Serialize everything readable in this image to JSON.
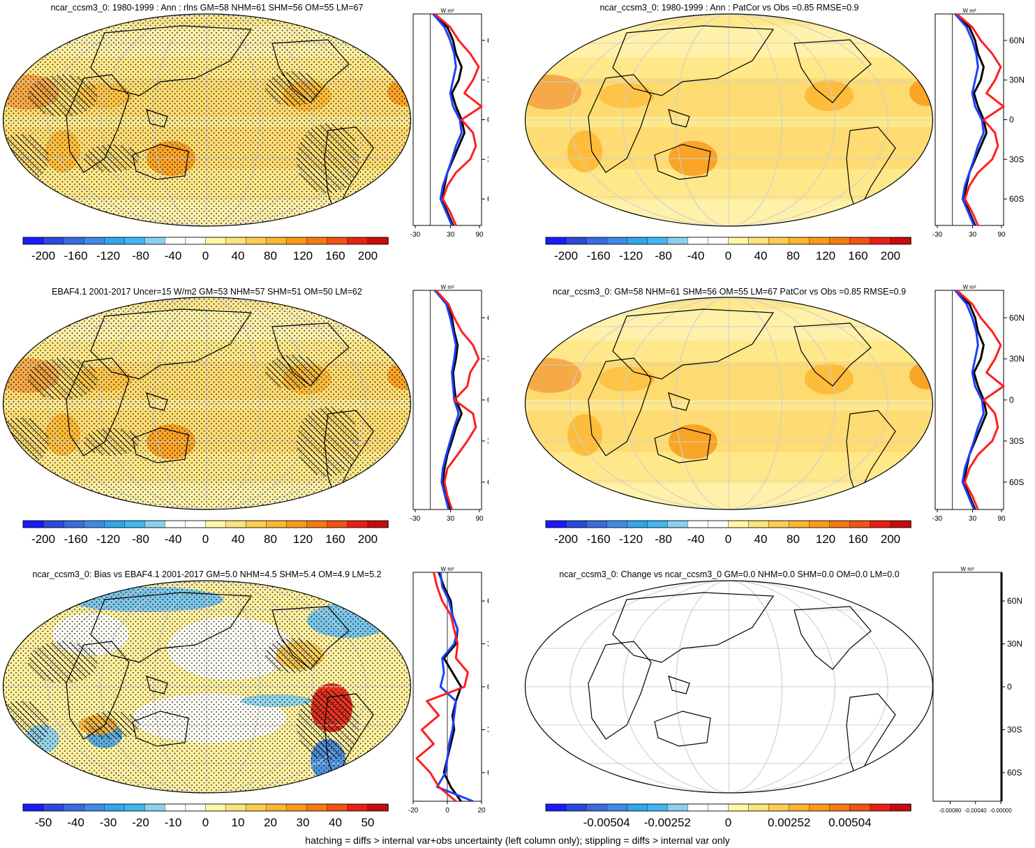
{
  "footer_note": "hatching = diffs > internal var+obs uncertainty (left column only); stippling = diffs > internal var only",
  "palette": [
    "#1a1aff",
    "#2a4adc",
    "#3a6be3",
    "#3f8ae8",
    "#2fa6ee",
    "#41b7f0",
    "#8bd1ef",
    "#ffffff",
    "#ffffff",
    "#fff7a8",
    "#ffe27a",
    "#fdcc50",
    "#fdb630",
    "#f99a1a",
    "#f57a10",
    "#ef5316",
    "#e82014",
    "#c50c0c"
  ],
  "zonal_units": "W m²",
  "lat_labels": [
    "60N",
    "30N",
    "0",
    "30S",
    "60S"
  ],
  "chart_data": [
    {
      "type": "heatmap",
      "id": "p1",
      "title": "ncar_ccsm3_0: 1980-1999 : Ann : rlns GM=58 NHM=61 SHM=56 OM=55 LM=67",
      "projection": "robinson",
      "hatching": true,
      "stippling": true,
      "colorbar": {
        "tick_labels": [
          "-200",
          "-160",
          "-120",
          "-80",
          "-40",
          "0",
          "40",
          "80",
          "120",
          "160",
          "200"
        ]
      },
      "zonal": {
        "xlim": [
          -30,
          90
        ],
        "x_ticks": [
          "-30",
          "30",
          "90"
        ],
        "series": [
          {
            "name": "black",
            "color": "#000000",
            "lat": [
              80,
              70,
              60,
              50,
              40,
              30,
              20,
              10,
              0,
              -10,
              -20,
              -30,
              -40,
              -50,
              -60,
              -70,
              -80
            ],
            "values": [
              5,
              30,
              40,
              45,
              55,
              50,
              38,
              45,
              55,
              60,
              50,
              40,
              30,
              25,
              20,
              30,
              40
            ]
          },
          {
            "name": "blue",
            "color": "#1f3fff",
            "lat": [
              80,
              70,
              60,
              50,
              40,
              30,
              20,
              10,
              0,
              -10,
              -20,
              -30,
              -40,
              -50,
              -60,
              -70,
              -80
            ],
            "values": [
              5,
              25,
              35,
              42,
              45,
              40,
              35,
              40,
              52,
              55,
              45,
              38,
              30,
              22,
              18,
              28,
              38
            ]
          },
          {
            "name": "red",
            "color": "#ff1f1f",
            "lat": [
              80,
              70,
              60,
              50,
              40,
              30,
              20,
              10,
              0,
              -10,
              -20,
              -30,
              -40,
              -50,
              -60,
              -70,
              -80
            ],
            "values": [
              8,
              35,
              50,
              70,
              85,
              75,
              60,
              90,
              55,
              75,
              80,
              70,
              45,
              30,
              22,
              35,
              45
            ]
          }
        ]
      }
    },
    {
      "type": "heatmap",
      "id": "p2",
      "title": "ncar_ccsm3_0: 1980-1999 : Ann : PatCor vs Obs =0.85 RMSE=0.9",
      "projection": "robinson",
      "hatching": false,
      "stippling": false,
      "colorbar": {
        "tick_labels": [
          "-200",
          "-160",
          "-120",
          "-80",
          "-40",
          "0",
          "40",
          "80",
          "120",
          "160",
          "200"
        ]
      },
      "zonal": {
        "xlim": [
          -30,
          90
        ],
        "x_ticks": [
          "-30",
          "30",
          "90"
        ],
        "series": [
          {
            "name": "black",
            "color": "#000000",
            "lat": [
              80,
              70,
              60,
              50,
              40,
              30,
              20,
              10,
              0,
              -10,
              -20,
              -30,
              -40,
              -50,
              -60,
              -70,
              -80
            ],
            "values": [
              5,
              30,
              40,
              45,
              55,
              50,
              38,
              45,
              55,
              60,
              50,
              40,
              30,
              25,
              20,
              30,
              40
            ]
          },
          {
            "name": "blue",
            "color": "#1f3fff",
            "lat": [
              80,
              70,
              60,
              50,
              40,
              30,
              20,
              10,
              0,
              -10,
              -20,
              -30,
              -40,
              -50,
              -60,
              -70,
              -80
            ],
            "values": [
              5,
              25,
              35,
              42,
              45,
              40,
              35,
              40,
              52,
              55,
              45,
              38,
              30,
              22,
              18,
              28,
              38
            ]
          },
          {
            "name": "red",
            "color": "#ff1f1f",
            "lat": [
              80,
              70,
              60,
              50,
              40,
              30,
              20,
              10,
              0,
              -10,
              -20,
              -30,
              -40,
              -50,
              -60,
              -70,
              -80
            ],
            "values": [
              8,
              35,
              50,
              70,
              85,
              75,
              60,
              90,
              55,
              75,
              80,
              70,
              45,
              30,
              22,
              35,
              45
            ]
          }
        ]
      }
    },
    {
      "type": "heatmap",
      "id": "p3",
      "title": "EBAF4.1 2001-2017 Uncer=15 W/m2 GM=53 NHM=57 SHM=51 OM=50 LM=62",
      "projection": "robinson",
      "hatching": true,
      "stippling": true,
      "colorbar": {
        "tick_labels": [
          "-200",
          "-160",
          "-120",
          "-80",
          "-40",
          "0",
          "40",
          "80",
          "120",
          "160",
          "200"
        ]
      },
      "zonal": {
        "xlim": [
          -30,
          90
        ],
        "x_ticks": [
          "-30",
          "30",
          "90"
        ],
        "series": [
          {
            "name": "black",
            "color": "#000000",
            "lat": [
              80,
              70,
              60,
              50,
              40,
              30,
              20,
              10,
              0,
              -10,
              -20,
              -30,
              -40,
              -50,
              -60,
              -70,
              -80
            ],
            "values": [
              8,
              30,
              38,
              42,
              48,
              45,
              40,
              42,
              45,
              55,
              45,
              38,
              30,
              25,
              22,
              28,
              35
            ]
          },
          {
            "name": "blue",
            "color": "#1f3fff",
            "lat": [
              80,
              70,
              60,
              50,
              40,
              30,
              20,
              10,
              0,
              -10,
              -20,
              -30,
              -40,
              -50,
              -60,
              -70,
              -80
            ],
            "values": [
              8,
              28,
              35,
              40,
              45,
              42,
              38,
              40,
              42,
              50,
              42,
              35,
              28,
              22,
              20,
              26,
              32
            ]
          },
          {
            "name": "red",
            "color": "#ff1f1f",
            "lat": [
              80,
              70,
              60,
              50,
              40,
              30,
              20,
              10,
              0,
              -10,
              -20,
              -30,
              -40,
              -50,
              -60,
              -70,
              -80
            ],
            "values": [
              10,
              32,
              42,
              55,
              75,
              85,
              70,
              65,
              42,
              75,
              80,
              65,
              48,
              30,
              25,
              30,
              38
            ]
          }
        ]
      }
    },
    {
      "type": "heatmap",
      "id": "p4",
      "title": "ncar_ccsm3_0: GM=58 NHM=61 SHM=56 OM=55 LM=67 PatCor vs Obs =0.85 RMSE=0.9",
      "projection": "robinson",
      "hatching": false,
      "stippling": false,
      "colorbar": {
        "tick_labels": [
          "-200",
          "-160",
          "-120",
          "-80",
          "-40",
          "0",
          "40",
          "80",
          "120",
          "160",
          "200"
        ]
      },
      "zonal": {
        "xlim": [
          -30,
          90
        ],
        "x_ticks": [
          "-30",
          "30",
          "90"
        ],
        "series": [
          {
            "name": "black",
            "color": "#000000",
            "lat": [
              80,
              70,
              60,
              50,
              40,
              30,
              20,
              10,
              0,
              -10,
              -20,
              -30,
              -40,
              -50,
              -60,
              -70,
              -80
            ],
            "values": [
              5,
              30,
              40,
              45,
              55,
              50,
              38,
              45,
              55,
              60,
              50,
              40,
              30,
              25,
              20,
              30,
              40
            ]
          },
          {
            "name": "blue",
            "color": "#1f3fff",
            "lat": [
              80,
              70,
              60,
              50,
              40,
              30,
              20,
              10,
              0,
              -10,
              -20,
              -30,
              -40,
              -50,
              -60,
              -70,
              -80
            ],
            "values": [
              5,
              25,
              35,
              42,
              45,
              40,
              35,
              40,
              52,
              55,
              45,
              38,
              30,
              22,
              18,
              28,
              38
            ]
          },
          {
            "name": "red",
            "color": "#ff1f1f",
            "lat": [
              80,
              70,
              60,
              50,
              40,
              30,
              20,
              10,
              0,
              -10,
              -20,
              -30,
              -40,
              -50,
              -60,
              -70,
              -80
            ],
            "values": [
              8,
              35,
              50,
              70,
              85,
              75,
              60,
              90,
              55,
              75,
              80,
              70,
              45,
              30,
              22,
              35,
              45
            ]
          }
        ]
      }
    },
    {
      "type": "heatmap",
      "id": "p5",
      "title": "ncar_ccsm3_0: Bias vs EBAF4.1 2001-2017 GM=5.0 NHM=4.5 SHM=5.4 OM=4.9 LM=5.2",
      "projection": "robinson",
      "hatching": true,
      "stippling": true,
      "colorbar": {
        "tick_labels": [
          "-50",
          "-40",
          "-30",
          "-20",
          "-10",
          "0",
          "10",
          "20",
          "30",
          "40",
          "50"
        ]
      },
      "zonal": {
        "xlim": [
          -20,
          20
        ],
        "x_ticks": [
          "-20",
          "0",
          "20"
        ],
        "series": [
          {
            "name": "black",
            "color": "#000000",
            "lat": [
              80,
              70,
              60,
              50,
              40,
              30,
              20,
              10,
              0,
              -10,
              -20,
              -30,
              -40,
              -50,
              -60,
              -70,
              -80
            ],
            "values": [
              -5,
              -2,
              2,
              3,
              6,
              5,
              -2,
              3,
              8,
              5,
              3,
              4,
              2,
              0,
              -2,
              2,
              8
            ]
          },
          {
            "name": "blue",
            "color": "#1f3fff",
            "lat": [
              80,
              70,
              60,
              50,
              40,
              30,
              20,
              10,
              0,
              -10,
              -20,
              -30,
              -40,
              -50,
              -60,
              -70,
              -80
            ],
            "values": [
              -4,
              -3,
              1,
              3,
              6,
              4,
              -3,
              -2,
              -4,
              5,
              4,
              3,
              1,
              0,
              -1,
              -6,
              15
            ]
          },
          {
            "name": "red",
            "color": "#ff1f1f",
            "lat": [
              80,
              70,
              60,
              50,
              40,
              30,
              20,
              10,
              0,
              -10,
              -20,
              -30,
              -40,
              -50,
              -60,
              -70,
              -80
            ],
            "values": [
              -8,
              -6,
              -3,
              2,
              4,
              6,
              5,
              12,
              10,
              -12,
              -5,
              -15,
              -8,
              -18,
              -10,
              -5,
              5
            ]
          }
        ]
      }
    },
    {
      "type": "heatmap",
      "id": "p6",
      "title": "ncar_ccsm3_0: Change vs ncar_ccsm3_0 GM=0.0 NHM=0.0 SHM=0.0 OM=0.0 LM=0.0",
      "projection": "robinson",
      "hatching": false,
      "stippling": false,
      "colorbar": {
        "tick_labels": [
          "-0.00504",
          "-0.00252",
          "0",
          "0.00252",
          "0.00504"
        ]
      },
      "zonal": {
        "xlim": [
          -0.001,
          0
        ],
        "x_ticks": [
          "-0.00080",
          "-0.00040",
          "-0.00000"
        ],
        "series": [
          {
            "name": "black",
            "color": "#000000",
            "lat": [
              80,
              70,
              60,
              50,
              40,
              30,
              20,
              10,
              0,
              -10,
              -20,
              -30,
              -40,
              -50,
              -60,
              -70,
              -80
            ],
            "values": [
              0,
              0,
              0,
              0,
              0,
              0,
              0,
              0,
              0,
              0,
              0,
              0,
              0,
              0,
              0,
              0,
              0
            ]
          }
        ]
      }
    }
  ]
}
